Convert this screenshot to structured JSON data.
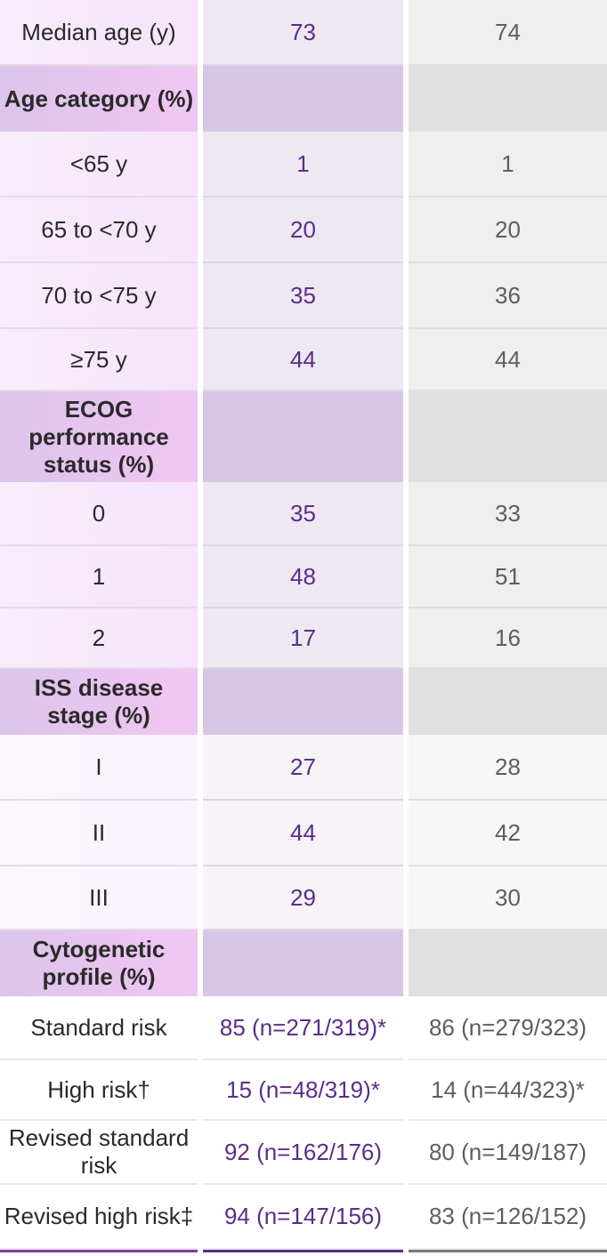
{
  "rows": [
    {
      "type": "data",
      "label": "Median age (y)",
      "col2": "73",
      "col3": "74"
    },
    {
      "type": "section",
      "label": "Age category (%)"
    },
    {
      "type": "data",
      "label": "<65 y",
      "col2": "1",
      "col3": "1"
    },
    {
      "type": "data",
      "label": "65 to <70 y",
      "col2": "20",
      "col3": "20"
    },
    {
      "type": "data",
      "label": "70 to <75 y",
      "col2": "35",
      "col3": "36"
    },
    {
      "type": "data",
      "label": "≥75 y",
      "col2": "44",
      "col3": "44"
    },
    {
      "type": "section",
      "label": "ECOG performance status (%)"
    },
    {
      "type": "data",
      "label": "0",
      "col2": "35",
      "col3": "33"
    },
    {
      "type": "data",
      "label": "1",
      "col2": "48",
      "col3": "51"
    },
    {
      "type": "data",
      "label": "2",
      "col2": "17",
      "col3": "16"
    },
    {
      "type": "section",
      "label": "ISS disease stage (%)"
    },
    {
      "type": "data",
      "label": "I",
      "col2": "27",
      "col3": "28"
    },
    {
      "type": "data",
      "label": "II",
      "col2": "44",
      "col3": "42"
    },
    {
      "type": "data",
      "label": "III",
      "col2": "29",
      "col3": "30"
    },
    {
      "type": "section",
      "label": "Cytogenetic profile (%)"
    },
    {
      "type": "data",
      "label": "Standard risk",
      "col2": "85 (n=271/319)*",
      "col3": "86 (n=279/323)"
    },
    {
      "type": "data",
      "label": "High risk†",
      "col2": "15 (n=48/319)*",
      "col3": "14 (n=44/323)*"
    },
    {
      "type": "data",
      "label": "Revised standard risk",
      "col2": "92 (n=162/176)",
      "col3": "80 (n=149/187)"
    },
    {
      "type": "data",
      "label": "Revised high risk‡",
      "col2": "94 (n=147/156)",
      "col3": "83 (n=126/152)"
    }
  ]
}
